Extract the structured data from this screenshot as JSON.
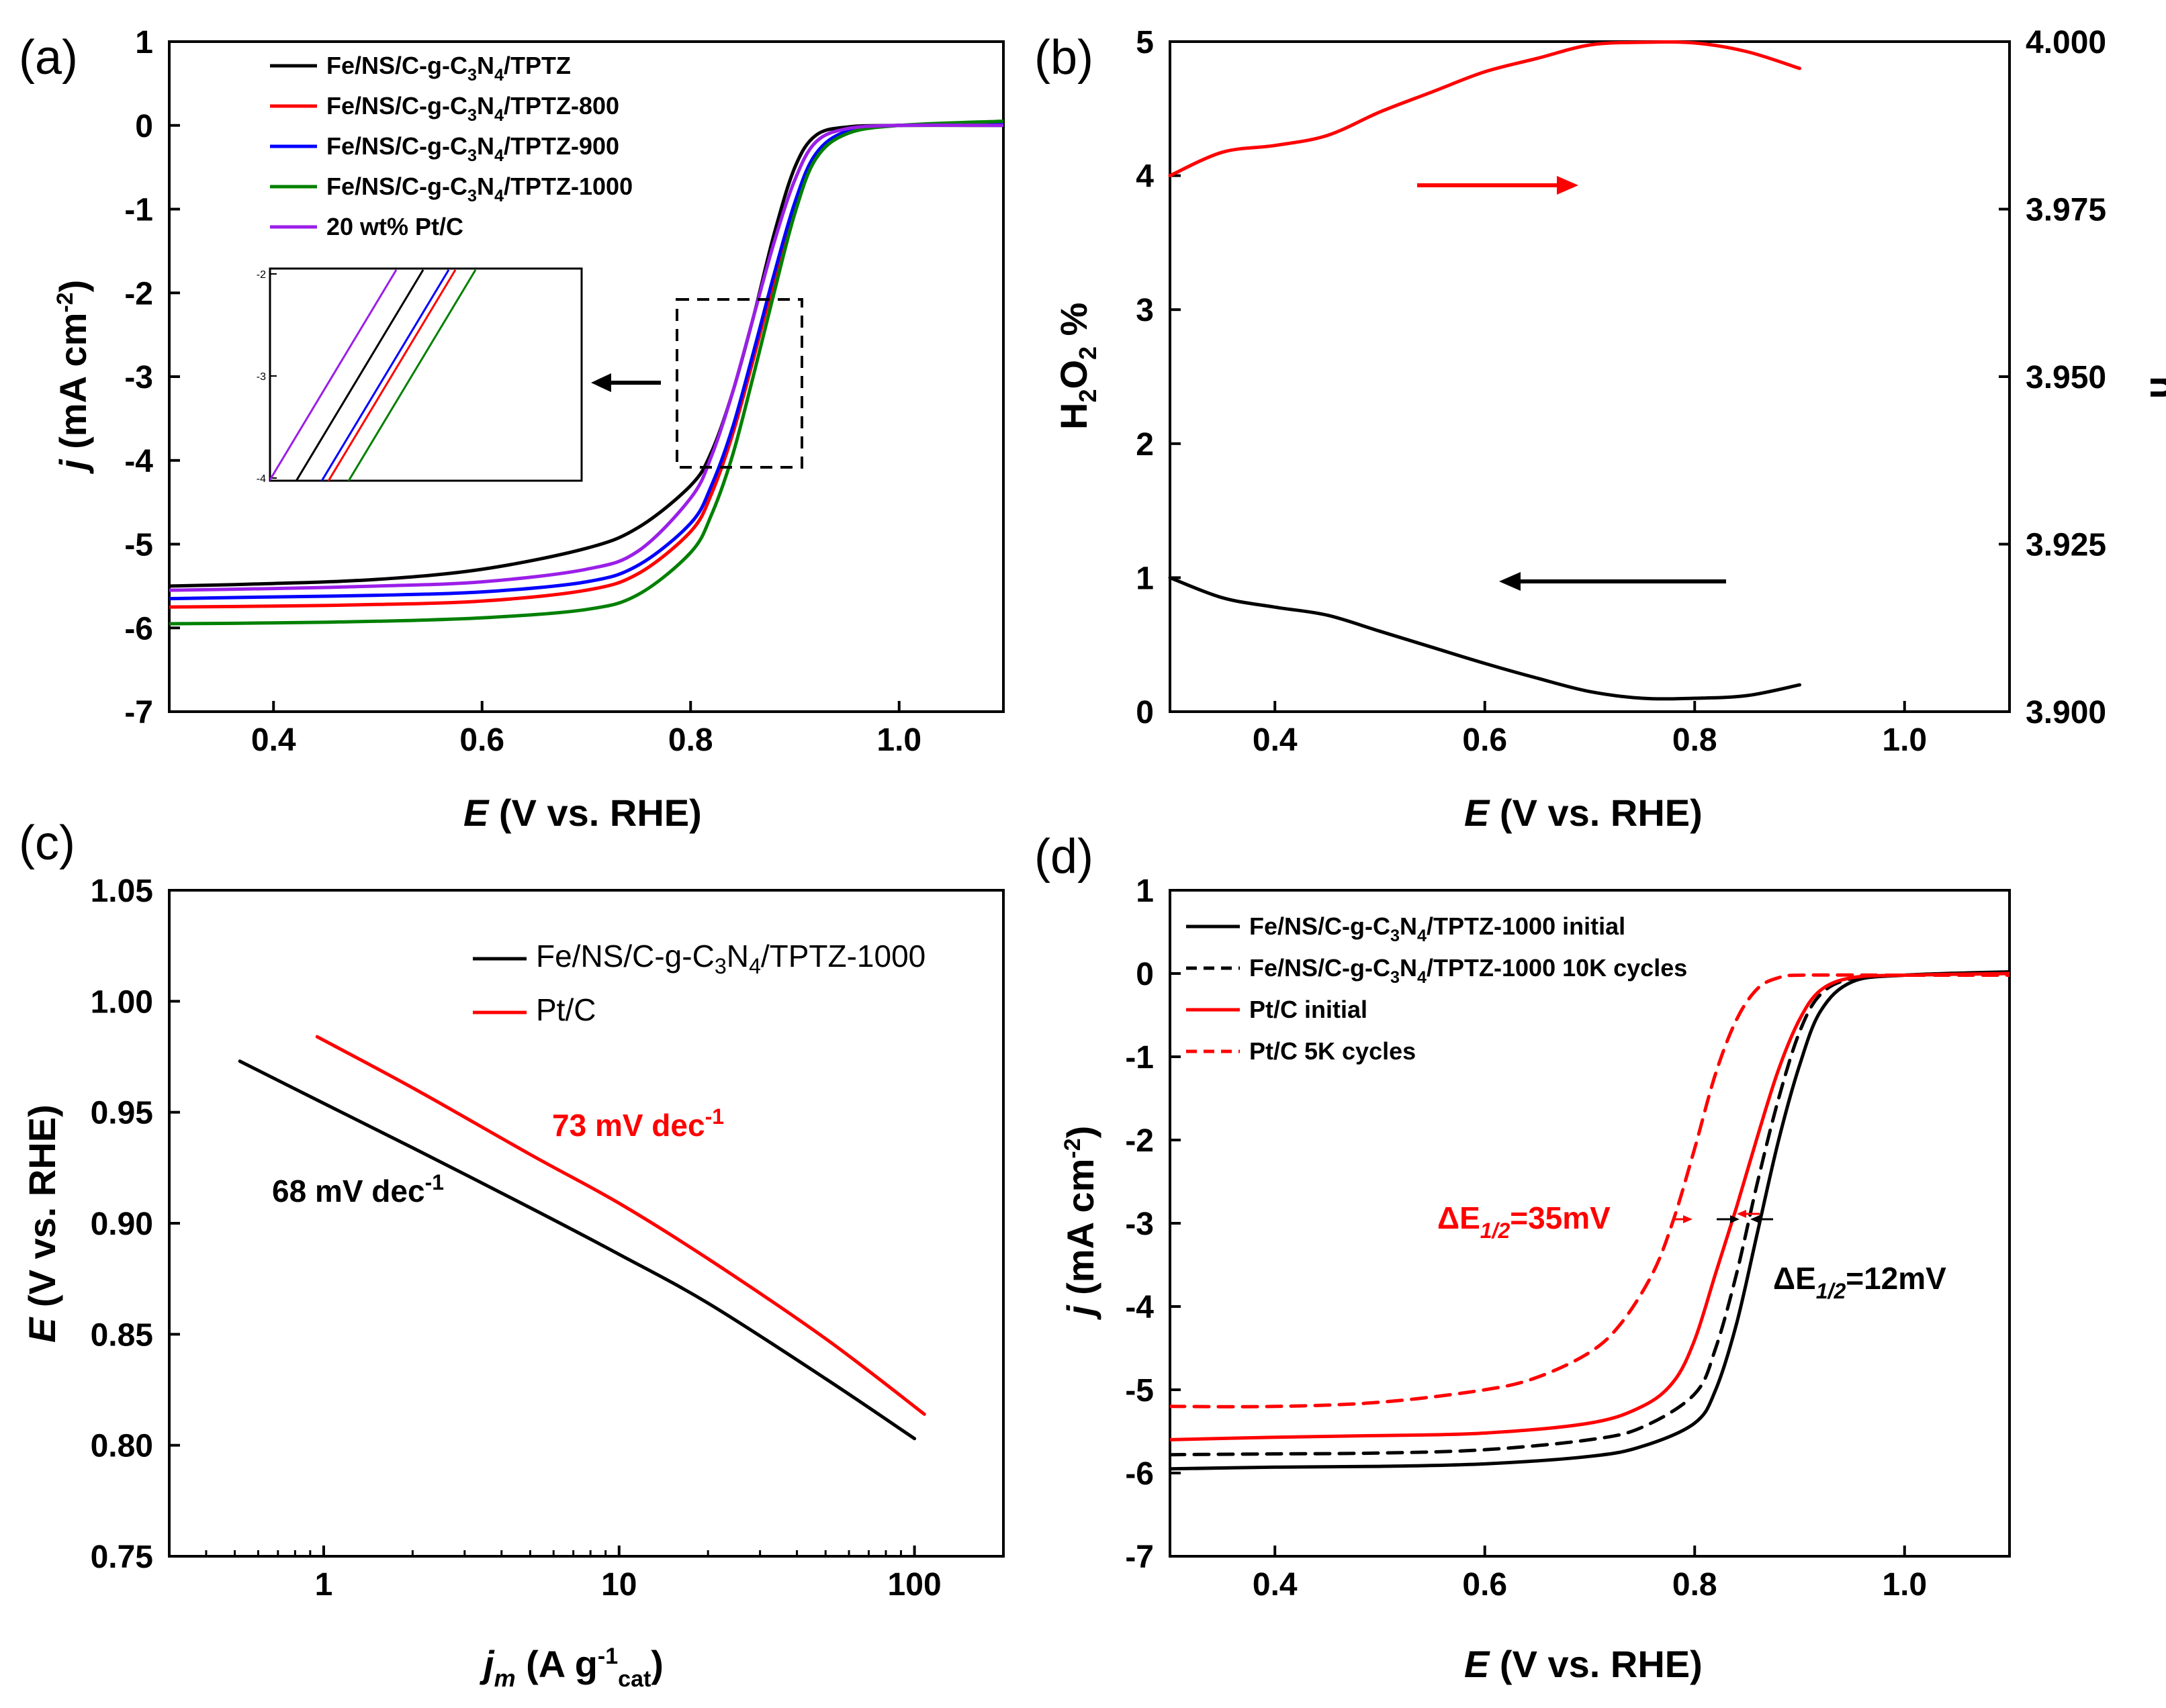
{
  "chart_data": [
    {
      "panel": "(a)",
      "type": "line",
      "xlabel": "E",
      "xlabel_unit": "(V vs. RHE)",
      "ylabel": "j",
      "ylabel_unit": "(mA cm",
      "ylabel_exp": "-2",
      "ylabel_close": ")",
      "xlim": [
        0.3,
        1.1
      ],
      "ylim": [
        -7,
        1
      ],
      "xticks": [
        "0.4",
        "0.6",
        "0.8",
        "1.0"
      ],
      "yticks": [
        "1",
        "0",
        "-1",
        "-2",
        "-3",
        "-4",
        "-5",
        "-6",
        "-7"
      ],
      "series": [
        {
          "name": "Fe/NS/C-g-C3N4/TPTZ",
          "label_parts": [
            "Fe/NS/C-g-C",
            "3",
            "N",
            "4",
            "/TPTZ"
          ],
          "color": "#000000",
          "x": [
            0.3,
            0.4,
            0.5,
            0.6,
            0.7,
            0.75,
            0.8,
            0.82,
            0.84,
            0.86,
            0.88,
            0.9,
            0.92,
            0.95,
            1.0,
            1.1
          ],
          "y": [
            -5.5,
            -5.47,
            -5.42,
            -5.3,
            -5.05,
            -4.8,
            -4.3,
            -3.9,
            -3.2,
            -2.3,
            -1.3,
            -0.5,
            -0.12,
            -0.02,
            0.0,
            0.0
          ]
        },
        {
          "name": "Fe/NS/C-g-C3N4/TPTZ-800",
          "label_parts": [
            "Fe/NS/C-g-C",
            "3",
            "N",
            "4",
            "/TPTZ-800"
          ],
          "color": "#ff0000",
          "x": [
            0.3,
            0.4,
            0.5,
            0.6,
            0.7,
            0.75,
            0.8,
            0.82,
            0.84,
            0.86,
            0.88,
            0.9,
            0.92,
            0.95,
            1.0,
            1.1
          ],
          "y": [
            -5.75,
            -5.74,
            -5.72,
            -5.68,
            -5.55,
            -5.35,
            -4.85,
            -4.4,
            -3.7,
            -2.8,
            -1.85,
            -0.95,
            -0.35,
            -0.08,
            0.0,
            0.02
          ]
        },
        {
          "name": "Fe/NS/C-g-C3N4/TPTZ-900",
          "label_parts": [
            "Fe/NS/C-g-C",
            "3",
            "N",
            "4",
            "/TPTZ-900"
          ],
          "color": "#0000ff",
          "x": [
            0.3,
            0.4,
            0.5,
            0.6,
            0.7,
            0.75,
            0.8,
            0.82,
            0.84,
            0.86,
            0.88,
            0.9,
            0.92,
            0.95,
            1.0,
            1.1
          ],
          "y": [
            -5.65,
            -5.63,
            -5.61,
            -5.57,
            -5.45,
            -5.25,
            -4.75,
            -4.3,
            -3.62,
            -2.72,
            -1.78,
            -0.92,
            -0.34,
            -0.07,
            0.0,
            0.02
          ]
        },
        {
          "name": "Fe/NS/C-g-C3N4/TPTZ-1000",
          "label_parts": [
            "Fe/NS/C-g-C",
            "3",
            "N",
            "4",
            "/TPTZ-1000"
          ],
          "color": "#008000",
          "x": [
            0.3,
            0.4,
            0.5,
            0.6,
            0.7,
            0.75,
            0.8,
            0.82,
            0.84,
            0.86,
            0.88,
            0.9,
            0.92,
            0.95,
            1.0,
            1.1
          ],
          "y": [
            -5.95,
            -5.94,
            -5.92,
            -5.88,
            -5.78,
            -5.6,
            -5.1,
            -4.65,
            -3.95,
            -3.0,
            -2.0,
            -1.05,
            -0.4,
            -0.1,
            0.0,
            0.05
          ]
        },
        {
          "name": "20 wt% Pt/C",
          "label_parts": [
            "20 wt% Pt/C"
          ],
          "color": "#9b1fe8",
          "x": [
            0.3,
            0.4,
            0.5,
            0.6,
            0.7,
            0.75,
            0.8,
            0.82,
            0.84,
            0.86,
            0.88,
            0.9,
            0.92,
            0.95,
            1.0,
            1.1
          ],
          "y": [
            -5.55,
            -5.53,
            -5.5,
            -5.45,
            -5.3,
            -5.08,
            -4.45,
            -3.95,
            -3.2,
            -2.3,
            -1.4,
            -0.65,
            -0.2,
            -0.04,
            0.0,
            0.0
          ]
        }
      ],
      "inset": {
        "ylim": [
          -4,
          -2
        ],
        "ytick_labels": [
          "-2",
          "-3",
          "-4"
        ],
        "zoom_xlim": [
          0.79,
          0.9
        ],
        "zoom_ylim": [
          -4.1,
          -2.05
        ]
      }
    },
    {
      "panel": "(b)",
      "type": "line",
      "xlabel": "E",
      "xlabel_unit": "(V vs. RHE)",
      "ylabel_left": "H2O2 %",
      "ylabel_left_parts": [
        "H",
        "2",
        "O",
        "2",
        " %"
      ],
      "ylabel_right": "n",
      "xlim": [
        0.3,
        1.1
      ],
      "ylim_left": [
        0,
        5
      ],
      "ylim_right": [
        3.9,
        4.0
      ],
      "xticks": [
        "0.4",
        "0.6",
        "0.8",
        "1.0"
      ],
      "yticks_left": [
        "0",
        "1",
        "2",
        "3",
        "4",
        "5"
      ],
      "yticks_right": [
        "3.900",
        "3.925",
        "3.950",
        "3.975",
        "4.000"
      ],
      "series": [
        {
          "name": "n",
          "axis": "right",
          "color": "#ff0000",
          "x": [
            0.3,
            0.35,
            0.4,
            0.45,
            0.5,
            0.55,
            0.6,
            0.65,
            0.7,
            0.75,
            0.8,
            0.85,
            0.9
          ],
          "y": [
            3.98,
            3.9835,
            3.9845,
            3.986,
            3.9895,
            3.9925,
            3.9955,
            3.9975,
            3.9995,
            3.9999,
            3.9998,
            3.9985,
            3.996
          ]
        },
        {
          "name": "H2O2 %",
          "axis": "left",
          "color": "#000000",
          "x": [
            0.3,
            0.35,
            0.4,
            0.45,
            0.5,
            0.55,
            0.6,
            0.65,
            0.7,
            0.75,
            0.8,
            0.85,
            0.9
          ],
          "y": [
            1.0,
            0.85,
            0.78,
            0.72,
            0.6,
            0.48,
            0.36,
            0.25,
            0.15,
            0.1,
            0.1,
            0.12,
            0.2
          ]
        }
      ]
    },
    {
      "panel": "(c)",
      "type": "line",
      "xscale": "log",
      "xlabel": "j",
      "xlabel_sub": "m",
      "xlabel_unit": "(A g",
      "xlabel_exp": "-1",
      "xlabel_sub2": "cat",
      "xlabel_close": ")",
      "ylabel": "E",
      "ylabel_unit": "(V vs. RHE)",
      "xlim": [
        0.3,
        200
      ],
      "ylim": [
        0.75,
        1.05
      ],
      "xticks": [
        "1",
        "10",
        "100"
      ],
      "yticks": [
        "0.75",
        "0.80",
        "0.85",
        "0.90",
        "0.95",
        "1.00",
        "1.05"
      ],
      "series": [
        {
          "name": "Fe/NS/C-g-C3N4/TPTZ-1000",
          "label_parts": [
            "Fe/NS/C-g-C",
            "3",
            "N",
            "4",
            "/TPTZ-1000"
          ],
          "color": "#000000",
          "x": [
            0.52,
            1,
            2,
            5,
            10,
            20,
            50,
            100
          ],
          "y": [
            0.973,
            0.954,
            0.934,
            0.907,
            0.886,
            0.864,
            0.83,
            0.803
          ]
        },
        {
          "name": "Pt/C",
          "label_parts": [
            "Pt/C"
          ],
          "color": "#ff0000",
          "x": [
            0.95,
            2,
            5,
            10,
            20,
            50,
            108
          ],
          "y": [
            0.984,
            0.961,
            0.931,
            0.909,
            0.884,
            0.848,
            0.814
          ]
        }
      ],
      "annotations": [
        {
          "text": "73 mV dec",
          "exp": "-1",
          "color": "#ff0000"
        },
        {
          "text": "68 mV dec",
          "exp": "-1",
          "color": "#000000"
        }
      ]
    },
    {
      "panel": "(d)",
      "type": "line",
      "xlabel": "E",
      "xlabel_unit": "(V vs. RHE)",
      "ylabel": "j",
      "ylabel_unit": "(mA cm",
      "ylabel_exp": "-2",
      "ylabel_close": ")",
      "xlim": [
        0.3,
        1.1
      ],
      "ylim": [
        -7,
        1
      ],
      "xticks": [
        "0.4",
        "0.6",
        "0.8",
        "1.0"
      ],
      "yticks": [
        "1",
        "0",
        "-1",
        "-2",
        "-3",
        "-4",
        "-5",
        "-6",
        "-7"
      ],
      "series": [
        {
          "name": "Fe/NS/C-g-C3N4/TPTZ-1000 initial",
          "label_parts": [
            "Fe/NS/C-g-C",
            "3",
            "N",
            "4",
            "/TPTZ-1000 initial"
          ],
          "color": "#000000",
          "dash": false,
          "x": [
            0.3,
            0.4,
            0.5,
            0.6,
            0.7,
            0.75,
            0.8,
            0.82,
            0.84,
            0.86,
            0.88,
            0.9,
            0.92,
            0.95,
            1.0,
            1.1
          ],
          "y": [
            -5.95,
            -5.93,
            -5.92,
            -5.89,
            -5.8,
            -5.68,
            -5.4,
            -5.0,
            -4.2,
            -3.1,
            -2.0,
            -1.1,
            -0.45,
            -0.1,
            -0.02,
            0.02
          ]
        },
        {
          "name": "Fe/NS/C-g-C3N4/TPTZ-1000 10K cycles",
          "label_parts": [
            "Fe/NS/C-g-C",
            "3",
            "N",
            "4",
            "/TPTZ-1000 10K cycles"
          ],
          "color": "#000000",
          "dash": true,
          "x": [
            0.3,
            0.4,
            0.5,
            0.6,
            0.7,
            0.75,
            0.8,
            0.82,
            0.84,
            0.86,
            0.88,
            0.9,
            0.92,
            0.95,
            1.0,
            1.1
          ],
          "y": [
            -5.78,
            -5.77,
            -5.76,
            -5.72,
            -5.6,
            -5.45,
            -5.05,
            -4.5,
            -3.6,
            -2.5,
            -1.5,
            -0.7,
            -0.25,
            -0.06,
            -0.02,
            0.0
          ]
        },
        {
          "name": "Pt/C initial",
          "label_parts": [
            "Pt/C initial"
          ],
          "color": "#ff0000",
          "dash": false,
          "x": [
            0.3,
            0.4,
            0.5,
            0.6,
            0.7,
            0.75,
            0.78,
            0.8,
            0.82,
            0.84,
            0.86,
            0.88,
            0.9,
            0.92,
            0.95,
            1.0,
            1.1
          ],
          "y": [
            -5.6,
            -5.57,
            -5.55,
            -5.52,
            -5.4,
            -5.2,
            -4.9,
            -4.4,
            -3.6,
            -2.8,
            -1.95,
            -1.15,
            -0.55,
            -0.2,
            -0.05,
            -0.02,
            0.0
          ]
        },
        {
          "name": "Pt/C 5K cycles",
          "label_parts": [
            "Pt/C 5K cycles"
          ],
          "color": "#ff0000",
          "dash": true,
          "x": [
            0.3,
            0.4,
            0.5,
            0.6,
            0.65,
            0.7,
            0.73,
            0.76,
            0.78,
            0.8,
            0.82,
            0.84,
            0.86,
            0.88,
            0.9,
            1.0,
            1.1
          ],
          "y": [
            -5.2,
            -5.2,
            -5.15,
            -5.0,
            -4.85,
            -4.55,
            -4.2,
            -3.6,
            -2.95,
            -2.1,
            -1.2,
            -0.55,
            -0.18,
            -0.05,
            -0.02,
            -0.02,
            -0.02
          ]
        }
      ],
      "annotations": [
        {
          "prefix": "ΔE",
          "sub": "1/2",
          "value": "=35mV",
          "color": "#ff0000"
        },
        {
          "prefix": "ΔE",
          "sub": "1/2",
          "value": "=12mV",
          "color": "#000000"
        }
      ]
    }
  ]
}
